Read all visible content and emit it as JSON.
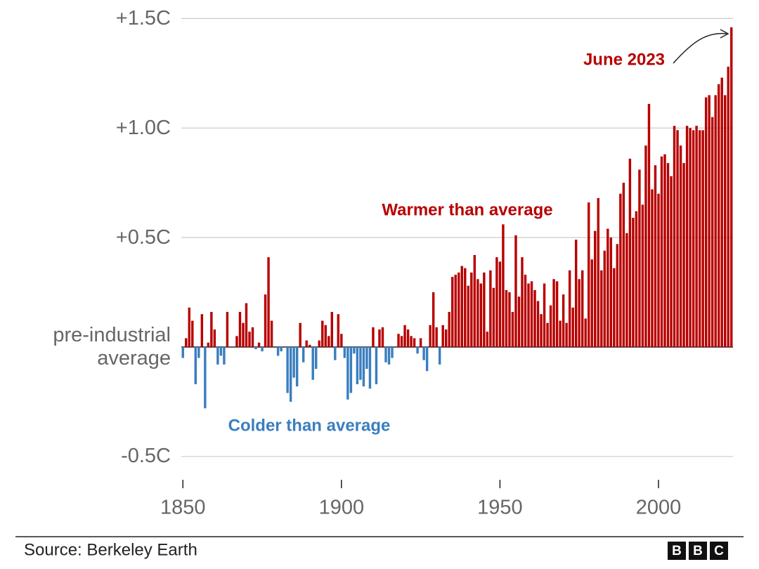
{
  "chart_data": {
    "type": "bar",
    "annotations": {
      "warmer": "Warmer than average",
      "colder": "Colder than average",
      "latest": "June 2023"
    },
    "source": "Source: Berkeley Earth",
    "logo": [
      "B",
      "B",
      "C"
    ],
    "colors": {
      "positive": "#b80000",
      "negative": "#3a7ebf"
    },
    "x": [
      1850,
      1851,
      1852,
      1853,
      1854,
      1855,
      1856,
      1857,
      1858,
      1859,
      1860,
      1861,
      1862,
      1863,
      1864,
      1865,
      1866,
      1867,
      1868,
      1869,
      1870,
      1871,
      1872,
      1873,
      1874,
      1875,
      1876,
      1877,
      1878,
      1879,
      1880,
      1881,
      1882,
      1883,
      1884,
      1885,
      1886,
      1887,
      1888,
      1889,
      1890,
      1891,
      1892,
      1893,
      1894,
      1895,
      1896,
      1897,
      1898,
      1899,
      1900,
      1901,
      1902,
      1903,
      1904,
      1905,
      1906,
      1907,
      1908,
      1909,
      1910,
      1911,
      1912,
      1913,
      1914,
      1915,
      1916,
      1917,
      1918,
      1919,
      1920,
      1921,
      1922,
      1923,
      1924,
      1925,
      1926,
      1927,
      1928,
      1929,
      1930,
      1931,
      1932,
      1933,
      1934,
      1935,
      1936,
      1937,
      1938,
      1939,
      1940,
      1941,
      1942,
      1943,
      1944,
      1945,
      1946,
      1947,
      1948,
      1949,
      1950,
      1951,
      1952,
      1953,
      1954,
      1955,
      1956,
      1957,
      1958,
      1959,
      1960,
      1961,
      1962,
      1963,
      1964,
      1965,
      1966,
      1967,
      1968,
      1969,
      1970,
      1971,
      1972,
      1973,
      1974,
      1975,
      1976,
      1977,
      1978,
      1979,
      1980,
      1981,
      1982,
      1983,
      1984,
      1985,
      1986,
      1987,
      1988,
      1989,
      1990,
      1991,
      1992,
      1993,
      1994,
      1995,
      1996,
      1997,
      1998,
      1999,
      2000,
      2001,
      2002,
      2003,
      2004,
      2005,
      2006,
      2007,
      2008,
      2009,
      2010,
      2011,
      2012,
      2013,
      2014,
      2015,
      2016,
      2017,
      2018,
      2019,
      2020,
      2021,
      2022,
      2023
    ],
    "values": [
      -0.05,
      0.04,
      0.18,
      0.12,
      -0.17,
      -0.05,
      0.15,
      -0.28,
      0.02,
      0.16,
      0.08,
      -0.08,
      -0.04,
      -0.08,
      0.16,
      0.0,
      0.0,
      0.05,
      0.16,
      0.11,
      0.2,
      0.07,
      0.09,
      -0.01,
      0.02,
      -0.02,
      0.24,
      0.41,
      0.12,
      0.0,
      -0.04,
      -0.02,
      0.0,
      -0.21,
      -0.25,
      -0.14,
      -0.18,
      0.11,
      -0.07,
      0.03,
      0.01,
      -0.15,
      -0.1,
      0.03,
      0.12,
      0.1,
      0.05,
      0.16,
      -0.06,
      0.15,
      0.06,
      -0.05,
      -0.24,
      -0.21,
      -0.03,
      -0.17,
      -0.15,
      -0.18,
      -0.1,
      -0.19,
      0.09,
      -0.17,
      0.08,
      0.09,
      -0.07,
      -0.08,
      -0.05,
      0.0,
      0.06,
      0.05,
      0.1,
      0.08,
      0.05,
      0.04,
      -0.03,
      0.04,
      -0.06,
      -0.11,
      0.1,
      0.25,
      0.09,
      -0.08,
      0.1,
      0.08,
      0.16,
      0.32,
      0.33,
      0.34,
      0.37,
      0.36,
      0.28,
      0.34,
      0.42,
      0.31,
      0.29,
      0.34,
      0.07,
      0.35,
      0.27,
      0.41,
      0.39,
      0.56,
      0.26,
      0.25,
      0.16,
      0.51,
      0.23,
      0.41,
      0.33,
      0.29,
      0.3,
      0.26,
      0.21,
      0.15,
      0.29,
      0.11,
      0.19,
      0.31,
      0.3,
      0.12,
      0.24,
      0.11,
      0.35,
      0.18,
      0.49,
      0.31,
      0.35,
      0.13,
      0.66,
      0.4,
      0.53,
      0.68,
      0.35,
      0.44,
      0.54,
      0.5,
      0.36,
      0.47,
      0.7,
      0.75,
      0.52,
      0.86,
      0.59,
      0.62,
      0.81,
      0.65,
      0.92,
      1.11,
      0.72,
      0.83,
      0.7,
      0.87,
      0.88,
      0.84,
      0.78,
      1.01,
      0.99,
      0.92,
      0.84,
      1.01,
      1.0,
      0.99,
      1.01,
      0.99,
      0.99,
      1.14,
      1.15,
      1.05,
      1.15,
      1.2,
      1.23,
      1.15,
      1.28,
      1.46
    ],
    "xlim": [
      1849.5,
      2023.5
    ],
    "xticks": [
      1850,
      1900,
      1950,
      2000
    ],
    "ylim": [
      -0.6,
      1.53
    ],
    "yticks": [
      {
        "value": -0.5,
        "label": "-0.5C"
      },
      {
        "value": 0,
        "label": "pre-industrial average"
      },
      {
        "value": 0.5,
        "label": "+0.5C"
      },
      {
        "value": 1.0,
        "label": "+1.0C"
      },
      {
        "value": 1.5,
        "label": "+1.5C"
      }
    ],
    "grid": true
  }
}
